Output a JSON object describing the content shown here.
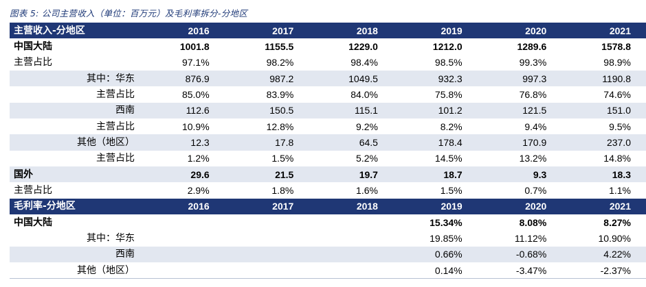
{
  "caption": "图表 5:  公司主营收入（单位：百万元）及毛利率拆分-分地区",
  "revenue_table": {
    "header_label": "主营收入-分地区",
    "years": [
      "2016",
      "2017",
      "2018",
      "2019",
      "2020",
      "2021"
    ],
    "rows": [
      {
        "label": "中国大陆",
        "values": [
          "1001.8",
          "1155.5",
          "1229.0",
          "1212.0",
          "1289.6",
          "1578.8"
        ]
      },
      {
        "label": "主营占比",
        "values": [
          "97.1%",
          "98.2%",
          "98.4%",
          "98.5%",
          "99.3%",
          "98.9%"
        ]
      },
      {
        "label": "其中：华东",
        "values": [
          "876.9",
          "987.2",
          "1049.5",
          "932.3",
          "997.3",
          "1190.8"
        ]
      },
      {
        "label": "主营占比",
        "values": [
          "85.0%",
          "83.9%",
          "84.0%",
          "75.8%",
          "76.8%",
          "74.6%"
        ]
      },
      {
        "label": "西南",
        "values": [
          "112.6",
          "150.5",
          "115.1",
          "101.2",
          "121.5",
          "151.0"
        ]
      },
      {
        "label": "主营占比",
        "values": [
          "10.9%",
          "12.8%",
          "9.2%",
          "8.2%",
          "9.4%",
          "9.5%"
        ]
      },
      {
        "label": "其他（地区）",
        "values": [
          "12.3",
          "17.8",
          "64.5",
          "178.4",
          "170.9",
          "237.0"
        ]
      },
      {
        "label": "主营占比",
        "values": [
          "1.2%",
          "1.5%",
          "5.2%",
          "14.5%",
          "13.2%",
          "14.8%"
        ]
      },
      {
        "label": "国外",
        "values": [
          "29.6",
          "21.5",
          "19.7",
          "18.7",
          "9.3",
          "18.3"
        ]
      },
      {
        "label": "主营占比",
        "values": [
          "2.9%",
          "1.8%",
          "1.6%",
          "1.5%",
          "0.7%",
          "1.1%"
        ]
      }
    ]
  },
  "margin_table": {
    "header_label": "毛利率-分地区",
    "years": [
      "2016",
      "2017",
      "2018",
      "2019",
      "2020",
      "2021"
    ],
    "rows": [
      {
        "label": "中国大陆",
        "values": [
          "",
          "",
          "",
          "15.34%",
          "8.08%",
          "8.27%"
        ]
      },
      {
        "label": "其中：华东",
        "values": [
          "",
          "",
          "",
          "19.85%",
          "11.12%",
          "10.90%"
        ]
      },
      {
        "label": "西南",
        "values": [
          "",
          "",
          "",
          "0.66%",
          "-0.68%",
          "4.22%"
        ]
      },
      {
        "label": "其他（地区）",
        "values": [
          "",
          "",
          "",
          "0.14%",
          "-3.47%",
          "-2.37%"
        ]
      }
    ]
  },
  "colors": {
    "header_bg": "#1f3775",
    "header_text": "#ffffff",
    "shade": "#e2e7f0",
    "caption": "#1f3a78"
  }
}
